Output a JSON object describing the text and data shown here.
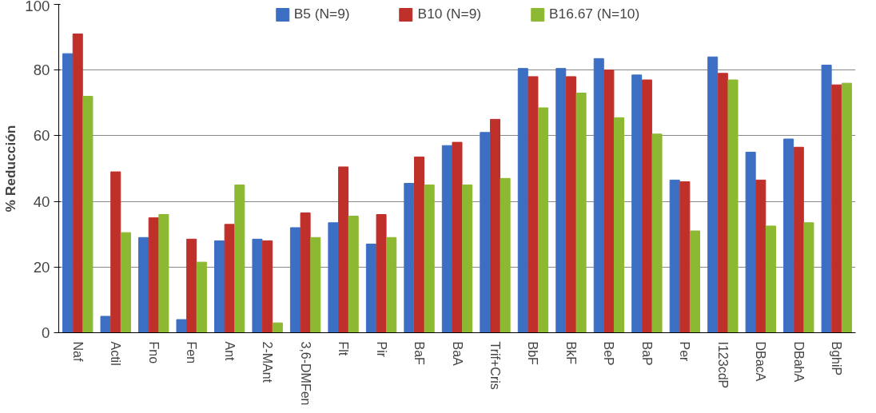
{
  "chart_data": {
    "type": "bar",
    "ylabel": "% Reducción",
    "categories": [
      "Naf",
      "Actil",
      "Fno",
      "Fen",
      "Ant",
      "2-MAnt",
      "3,6-DMFen",
      "Flt",
      "Pir",
      "BaF",
      "BaA",
      "Trif+Cris",
      "BbF",
      "BkF",
      "BeP",
      "BaP",
      "Per",
      "I123cdP",
      "DBacA",
      "DBahA",
      "BghiP"
    ],
    "series": [
      {
        "name": "B5 (N=9)",
        "color": "#3c6fc4",
        "values": [
          85,
          5,
          29,
          4,
          28,
          28.5,
          32,
          33.5,
          27,
          45.5,
          57,
          61,
          80.5,
          80.5,
          83.5,
          78.5,
          46.5,
          84,
          55,
          59,
          81.5
        ]
      },
      {
        "name": "B10 (N=9)",
        "color": "#c0302b",
        "values": [
          91,
          49,
          35,
          28.5,
          33,
          28,
          36.5,
          50.5,
          36,
          53.5,
          58,
          65,
          78,
          78,
          80,
          77,
          46,
          79,
          46.5,
          56.5,
          75.5
        ]
      },
      {
        "name": "B16.67 (N=10)",
        "color": "#8db832",
        "values": [
          72,
          30.5,
          36,
          21.5,
          45,
          3,
          29,
          35.5,
          29,
          45,
          45,
          47,
          68.5,
          73,
          65.5,
          60.5,
          31,
          77,
          32.5,
          33.5,
          76
        ]
      }
    ],
    "ylim": [
      0,
      100
    ],
    "yticks": [
      0,
      20,
      40,
      60,
      80,
      100
    ],
    "grid": "y",
    "legend": "top"
  }
}
